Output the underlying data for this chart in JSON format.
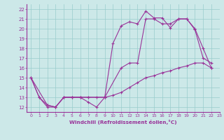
{
  "xlabel": "Windchill (Refroidissement éolien,°C)",
  "xlim": [
    -0.5,
    23
  ],
  "ylim": [
    11.5,
    22.5
  ],
  "yticks": [
    12,
    13,
    14,
    15,
    16,
    17,
    18,
    19,
    20,
    21,
    22
  ],
  "xticks": [
    0,
    1,
    2,
    3,
    4,
    5,
    6,
    7,
    8,
    9,
    10,
    11,
    12,
    13,
    14,
    15,
    16,
    17,
    18,
    19,
    20,
    21,
    22,
    23
  ],
  "bg_color": "#cce8e8",
  "line_color": "#993399",
  "grid_color": "#99cccc",
  "line1_x": [
    0,
    1,
    2,
    3,
    4,
    5,
    6,
    7,
    8,
    9,
    10,
    11,
    12,
    13,
    14,
    15,
    16,
    17,
    18,
    19,
    20,
    21,
    22
  ],
  "line1_y": [
    15,
    13,
    12,
    12,
    13,
    13,
    13,
    12.5,
    12,
    13,
    18.5,
    20.3,
    20.7,
    20.5,
    21.8,
    21.1,
    21.1,
    20.1,
    21.0,
    21.0,
    19.9,
    17.0,
    16.5
  ],
  "line2_x": [
    0,
    2,
    3,
    4,
    5,
    6,
    7,
    9,
    11,
    12,
    13,
    14,
    15,
    16,
    17,
    18,
    19,
    20,
    21,
    22
  ],
  "line2_y": [
    15,
    12.2,
    12,
    13,
    13,
    13,
    13,
    13,
    16,
    16.5,
    16.5,
    21.0,
    21.0,
    20.5,
    20.5,
    21.0,
    21.0,
    20.0,
    18.0,
    16.0
  ],
  "line3_x": [
    0,
    1,
    2,
    3,
    4,
    5,
    6,
    7,
    8,
    9,
    10,
    11,
    12,
    13,
    14,
    15,
    16,
    17,
    18,
    19,
    20,
    21,
    22
  ],
  "line3_y": [
    15,
    13,
    12.2,
    12,
    13,
    13,
    13,
    13,
    13,
    13,
    13.2,
    13.5,
    14.0,
    14.5,
    15.0,
    15.2,
    15.5,
    15.7,
    16.0,
    16.2,
    16.5,
    16.5,
    16.0
  ]
}
